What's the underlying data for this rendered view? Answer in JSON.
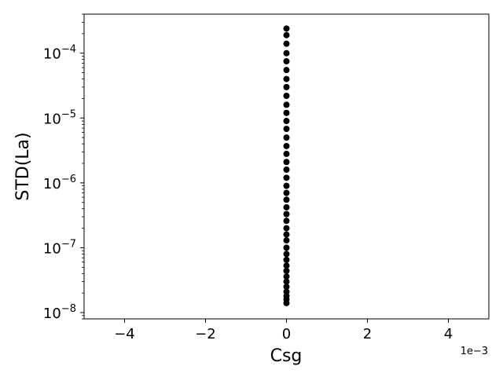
{
  "chart_data": {
    "type": "scatter",
    "xlabel": "Csg",
    "ylabel": "STD(La)",
    "x_offset_label": "1e−3",
    "xlim": [
      -0.005,
      0.005
    ],
    "ylim": [
      8e-09,
      0.0004
    ],
    "yscale": "log",
    "grid": false,
    "x_ticks": [
      {
        "value": -0.004,
        "label": "−4"
      },
      {
        "value": -0.002,
        "label": "−2"
      },
      {
        "value": 0,
        "label": "0"
      },
      {
        "value": 0.002,
        "label": "2"
      },
      {
        "value": 0.004,
        "label": "4"
      }
    ],
    "y_ticks": [
      {
        "value": 1e-08,
        "base": "10",
        "exp": "−8"
      },
      {
        "value": 1e-07,
        "base": "10",
        "exp": "−7"
      },
      {
        "value": 1e-06,
        "base": "10",
        "exp": "−6"
      },
      {
        "value": 1e-05,
        "base": "10",
        "exp": "−5"
      },
      {
        "value": 0.0001,
        "base": "10",
        "exp": "−4"
      }
    ],
    "marker_color": "#000000",
    "series": [
      {
        "x": [
          0,
          0,
          0,
          0,
          0,
          0,
          0,
          0,
          0,
          0,
          0,
          0,
          0,
          0,
          0,
          0,
          0,
          0,
          0,
          0,
          0,
          0,
          0,
          0,
          0,
          0,
          0,
          0,
          0,
          0,
          0,
          0,
          0,
          0,
          0,
          0,
          0,
          0,
          0,
          0
        ],
        "y": [
          1.4e-08,
          1.6e-08,
          1.8e-08,
          2.1e-08,
          2.5e-08,
          3e-08,
          3.6e-08,
          4.4e-08,
          5.3e-08,
          6.5e-08,
          8e-08,
          1e-07,
          1.3e-07,
          1.6e-07,
          2e-07,
          2.6e-07,
          3.3e-07,
          4.2e-07,
          5.5e-07,
          7e-07,
          9e-07,
          1.2e-06,
          1.6e-06,
          2.1e-06,
          2.8e-06,
          3.7e-06,
          5e-06,
          6.8e-06,
          9e-06,
          1.2e-05,
          1.6e-05,
          2.2e-05,
          3e-05,
          4e-05,
          5.5e-05,
          7.5e-05,
          0.0001,
          0.00014,
          0.00019,
          0.00024
        ]
      }
    ]
  }
}
